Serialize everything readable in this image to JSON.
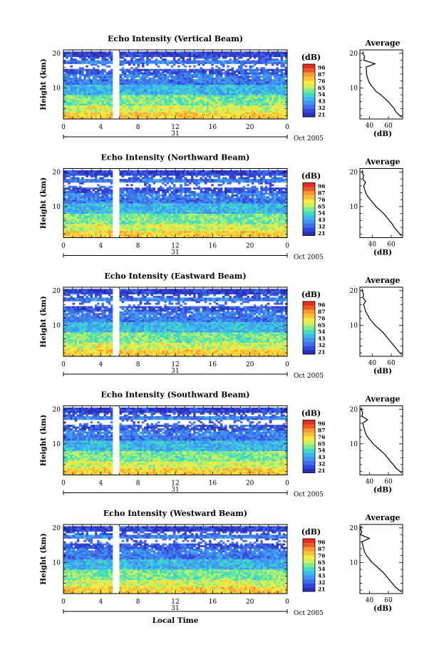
{
  "chart_data": [
    {
      "type": "heatmap",
      "title": "Echo Intensity (Vertical Beam)",
      "ylabel": "Height (km)",
      "xlabel": "",
      "x_ticks": [
        "0",
        "4",
        "8",
        "12",
        "16",
        "20",
        "0"
      ],
      "xlim": [
        0,
        24
      ],
      "y_ticks": [
        "20",
        "10"
      ],
      "ylim": [
        1,
        21
      ],
      "date_day": "31",
      "date_month": "Oct 2005",
      "colorbar": {
        "unit": "(dB)",
        "ticks": [
          "96",
          "87",
          "76",
          "65",
          "54",
          "43",
          "32",
          "21"
        ],
        "range": [
          21,
          96
        ]
      },
      "profile": {
        "title": "Average",
        "xlabel": "(dB)",
        "x_ticks": [
          "40",
          "60"
        ],
        "xlim": [
          30,
          75
        ],
        "y": [
          1.5,
          2,
          3,
          4,
          5,
          6,
          7,
          8,
          9,
          10,
          11,
          12,
          13,
          14,
          15,
          16,
          17,
          18,
          19,
          20,
          20.5
        ],
        "x": [
          74,
          72,
          68,
          66,
          63,
          60,
          56,
          52,
          47,
          44,
          41,
          39,
          38,
          37,
          37,
          36.5,
          46,
          34,
          35,
          33,
          34
        ]
      }
    },
    {
      "type": "heatmap",
      "title": "Echo Intensity (Northward Beam)",
      "ylabel": "Height (km)",
      "xlabel": "",
      "x_ticks": [
        "0",
        "4",
        "8",
        "12",
        "16",
        "20",
        "0"
      ],
      "xlim": [
        0,
        24
      ],
      "y_ticks": [
        "20",
        "10"
      ],
      "ylim": [
        1,
        21
      ],
      "date_day": "31",
      "date_month": "Oct 2005",
      "colorbar": {
        "unit": "(dB)",
        "ticks": [
          "96",
          "87",
          "76",
          "65",
          "54",
          "43",
          "32",
          "21"
        ],
        "range": [
          21,
          96
        ]
      },
      "profile": {
        "title": "Average",
        "xlabel": "(dB)",
        "x_ticks": [
          "40",
          "60"
        ],
        "xlim": [
          27,
          72
        ],
        "y": [
          1.5,
          2,
          3,
          4,
          5,
          6,
          7,
          8,
          9,
          10,
          11,
          12,
          13,
          14,
          15,
          16,
          17,
          18,
          19,
          20,
          20.5
        ],
        "x": [
          71,
          69,
          66,
          63,
          61,
          58,
          55,
          52,
          48,
          44,
          41,
          38,
          35,
          33,
          32,
          31,
          33,
          30,
          31,
          29,
          30
        ]
      }
    },
    {
      "type": "heatmap",
      "title": "Echo Intensity (Eastward Beam)",
      "ylabel": "Height (km)",
      "xlabel": "",
      "x_ticks": [
        "0",
        "4",
        "8",
        "12",
        "16",
        "20",
        "0"
      ],
      "xlim": [
        0,
        24
      ],
      "y_ticks": [
        "20",
        "10"
      ],
      "ylim": [
        1,
        21
      ],
      "date_day": "31",
      "date_month": "Oct 2005",
      "colorbar": {
        "unit": "(dB)",
        "ticks": [
          "96",
          "87",
          "76",
          "65",
          "54",
          "43",
          "32",
          "21"
        ],
        "range": [
          21,
          96
        ]
      },
      "profile": {
        "title": "Average",
        "xlabel": "(dB)",
        "x_ticks": [
          "40",
          "60"
        ],
        "xlim": [
          27,
          72
        ],
        "y": [
          1.5,
          2,
          3,
          4,
          5,
          6,
          7,
          8,
          9,
          10,
          11,
          12,
          13,
          14,
          15,
          16,
          17,
          18,
          19,
          20,
          20.5
        ],
        "x": [
          71,
          69,
          66,
          63,
          60,
          57,
          54,
          51,
          47,
          43,
          40,
          37,
          35,
          33,
          32,
          31,
          33,
          30,
          31,
          29,
          30
        ]
      }
    },
    {
      "type": "heatmap",
      "title": "Echo Intensity (Southward Beam)",
      "ylabel": "Height (km)",
      "xlabel": "",
      "x_ticks": [
        "0",
        "4",
        "8",
        "12",
        "16",
        "20",
        "0"
      ],
      "xlim": [
        0,
        24
      ],
      "y_ticks": [
        "20",
        "10"
      ],
      "ylim": [
        1,
        21
      ],
      "date_day": "31",
      "date_month": "Oct 2005",
      "colorbar": {
        "unit": "(dB)",
        "ticks": [
          "96",
          "87",
          "76",
          "65",
          "54",
          "43",
          "32",
          "21"
        ],
        "range": [
          21,
          96
        ]
      },
      "profile": {
        "title": "Average",
        "xlabel": "(dB)",
        "x_ticks": [
          "40",
          "60"
        ],
        "xlim": [
          30,
          75
        ],
        "y": [
          1.5,
          2,
          3,
          4,
          5,
          6,
          7,
          8,
          9,
          10,
          11,
          12,
          13,
          14,
          15,
          16,
          17,
          18,
          19,
          20,
          20.5
        ],
        "x": [
          74,
          72,
          68,
          65,
          62,
          59,
          56,
          52,
          48,
          44,
          41,
          38,
          36,
          35,
          34,
          33,
          38,
          32,
          33,
          31,
          32
        ]
      }
    },
    {
      "type": "heatmap",
      "title": "Echo Intensity (Westward Beam)",
      "ylabel": "Height (km)",
      "xlabel": "Local Time",
      "x_ticks": [
        "0",
        "4",
        "8",
        "12",
        "16",
        "20",
        "0"
      ],
      "xlim": [
        0,
        24
      ],
      "y_ticks": [
        "20",
        "10"
      ],
      "ylim": [
        1,
        21
      ],
      "date_day": "31",
      "date_month": "Oct 2005",
      "colorbar": {
        "unit": "(dB)",
        "ticks": [
          "96",
          "87",
          "76",
          "65",
          "54",
          "43",
          "32",
          "21"
        ],
        "range": [
          21,
          96
        ]
      },
      "profile": {
        "title": "Average",
        "xlabel": "(dB)",
        "x_ticks": [
          "40",
          "60"
        ],
        "xlim": [
          30,
          75
        ],
        "y": [
          1.5,
          2,
          3,
          4,
          5,
          6,
          7,
          8,
          9,
          10,
          11,
          12,
          13,
          14,
          15,
          16,
          17,
          18,
          19,
          20,
          20.5
        ],
        "x": [
          74,
          71,
          67,
          64,
          61,
          58,
          55,
          51,
          47,
          43,
          40,
          37,
          35,
          34,
          33,
          32,
          40,
          31,
          32,
          30,
          32
        ]
      }
    }
  ]
}
